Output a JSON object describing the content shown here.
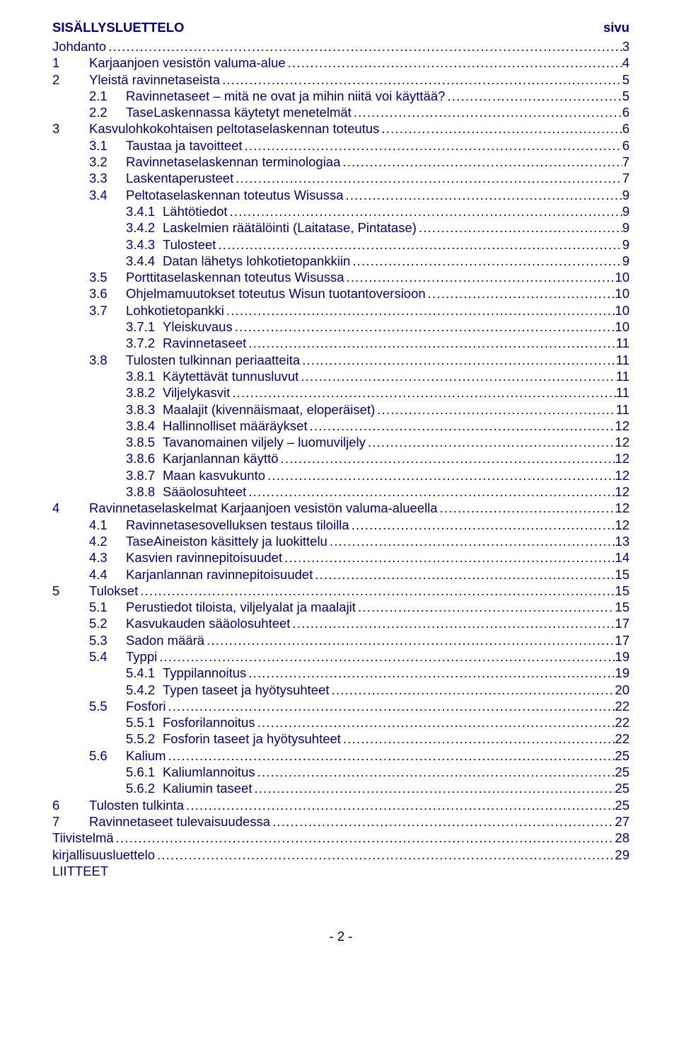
{
  "header": {
    "left": "SISÄLLYSLUETTELO",
    "right": "sivu"
  },
  "toc": [
    {
      "indent": "noindent",
      "num": "",
      "title": "Johdanto",
      "page": "3"
    },
    {
      "indent": "ind0",
      "num": "1",
      "title": "Karjaanjoen vesistön valuma-alue",
      "page": "4"
    },
    {
      "indent": "ind0",
      "num": "2",
      "title": "Yleistä ravinnetaseista",
      "page": "5"
    },
    {
      "indent": "ind1",
      "num": "2.1",
      "title": "Ravinnetaseet – mitä ne ovat ja mihin niitä voi käyttää?",
      "page": "5"
    },
    {
      "indent": "ind1",
      "num": "2.2",
      "title": "TaseLaskennassa käytetyt menetelmät",
      "page": "6"
    },
    {
      "indent": "ind0",
      "num": "3",
      "title": "Kasvulohkokohtaisen peltotaselaskennan toteutus",
      "page": "6"
    },
    {
      "indent": "ind1",
      "num": "3.1",
      "title": "Taustaa ja tavoitteet",
      "page": "6"
    },
    {
      "indent": "ind1",
      "num": "3.2",
      "title": "Ravinnetaselaskennan terminologiaa",
      "page": "7"
    },
    {
      "indent": "ind1",
      "num": "3.3",
      "title": "Laskentaperusteet",
      "page": "7"
    },
    {
      "indent": "ind1",
      "num": "3.4",
      "title": "Peltotaselaskennan toteutus Wisussa",
      "page": "9"
    },
    {
      "indent": "ind2",
      "num": "3.4.1",
      "title": "Lähtötiedot",
      "page": "9"
    },
    {
      "indent": "ind2",
      "num": "3.4.2",
      "title": "Laskelmien räätälöinti (Laitatase, Pintatase)",
      "page": "9"
    },
    {
      "indent": "ind2",
      "num": "3.4.3",
      "title": "Tulosteet",
      "page": "9"
    },
    {
      "indent": "ind2",
      "num": "3.4.4",
      "title": "Datan lähetys lohkotietopankkiin",
      "page": "9"
    },
    {
      "indent": "ind1",
      "num": "3.5",
      "title": "Porttitaselaskennan toteutus Wisussa",
      "page": "10"
    },
    {
      "indent": "ind1",
      "num": "3.6",
      "title": "Ohjelmamuutokset toteutus Wisun tuotantoversioon",
      "page": "10"
    },
    {
      "indent": "ind1",
      "num": "3.7",
      "title": "Lohkotietopankki",
      "page": "10"
    },
    {
      "indent": "ind2",
      "num": "3.7.1",
      "title": "Yleiskuvaus",
      "page": "10"
    },
    {
      "indent": "ind2",
      "num": "3.7.2",
      "title": "Ravinnetaseet",
      "page": "11"
    },
    {
      "indent": "ind1",
      "num": "3.8",
      "title": "Tulosten tulkinnan periaatteita",
      "page": "11"
    },
    {
      "indent": "ind2",
      "num": "3.8.1",
      "title": "Käytettävät tunnusluvut",
      "page": "11"
    },
    {
      "indent": "ind2",
      "num": "3.8.2",
      "title": "Viljelykasvit",
      "page": "11"
    },
    {
      "indent": "ind2",
      "num": "3.8.3",
      "title": "Maalajit (kivennäismaat, eloperäiset)",
      "page": "11"
    },
    {
      "indent": "ind2",
      "num": "3.8.4",
      "title": "Hallinnolliset määräykset",
      "page": "12"
    },
    {
      "indent": "ind2",
      "num": "3.8.5",
      "title": "Tavanomainen viljely – luomuviljely",
      "page": "12"
    },
    {
      "indent": "ind2",
      "num": "3.8.6",
      "title": "Karjanlannan käyttö",
      "page": "12"
    },
    {
      "indent": "ind2",
      "num": "3.8.7",
      "title": "Maan kasvukunto",
      "page": "12"
    },
    {
      "indent": "ind2",
      "num": "3.8.8",
      "title": "Sääolosuhteet",
      "page": "12"
    },
    {
      "indent": "ind0",
      "num": "4",
      "title": "Ravinnetaselaskelmat Karjaanjoen vesistön valuma-alueella",
      "page": "12"
    },
    {
      "indent": "ind1",
      "num": "4.1",
      "title": "Ravinnetasesovelluksen testaus tiloilla",
      "page": "12"
    },
    {
      "indent": "ind1",
      "num": "4.2",
      "title": "TaseAineiston käsittely ja luokittelu",
      "page": "13"
    },
    {
      "indent": "ind1",
      "num": "4.3",
      "title": "Kasvien ravinnepitoisuudet",
      "page": "14"
    },
    {
      "indent": "ind1",
      "num": "4.4",
      "title": "Karjanlannan ravinnepitoisuudet",
      "page": "15"
    },
    {
      "indent": "ind0",
      "num": "5",
      "title": "Tulokset",
      "page": "15"
    },
    {
      "indent": "ind1",
      "num": "5.1",
      "title": "Perustiedot tiloista, viljelyalat ja maalajit",
      "page": "15"
    },
    {
      "indent": "ind1",
      "num": "5.2",
      "title": "Kasvukauden sääolosuhteet",
      "page": "17"
    },
    {
      "indent": "ind1",
      "num": "5.3",
      "title": "Sadon määrä",
      "page": "17"
    },
    {
      "indent": "ind1",
      "num": "5.4",
      "title": "Typpi",
      "page": "19"
    },
    {
      "indent": "ind2",
      "num": "5.4.1",
      "title": "Typpilannoitus",
      "page": "19"
    },
    {
      "indent": "ind2",
      "num": "5.4.2",
      "title": "Typen taseet ja hyötysuhteet",
      "page": "20"
    },
    {
      "indent": "ind1",
      "num": "5.5",
      "title": "Fosfori",
      "page": "22"
    },
    {
      "indent": "ind2",
      "num": "5.5.1",
      "title": "Fosforilannoitus",
      "page": "22"
    },
    {
      "indent": "ind2",
      "num": "5.5.2",
      "title": "Fosforin taseet ja hyötysuhteet",
      "page": "22"
    },
    {
      "indent": "ind1",
      "num": "5.6",
      "title": "Kalium",
      "page": "25"
    },
    {
      "indent": "ind2",
      "num": "5.6.1",
      "title": "Kaliumlannoitus",
      "page": "25"
    },
    {
      "indent": "ind2",
      "num": "5.6.2",
      "title": "Kaliumin taseet",
      "page": "25"
    },
    {
      "indent": "ind0",
      "num": "6",
      "title": "Tulosten tulkinta",
      "page": "25"
    },
    {
      "indent": "ind0",
      "num": "7",
      "title": "Ravinnetaseet tulevaisuudessa",
      "page": "27"
    },
    {
      "indent": "noindent",
      "num": "",
      "title": "Tiivistelmä",
      "page": "28"
    },
    {
      "indent": "noindent",
      "num": "",
      "title": "kirjallisuusluettelo",
      "page": "29"
    },
    {
      "indent": "noindent",
      "num": "",
      "title": "LIITTEET",
      "page": ""
    }
  ],
  "footer": "- 2 -",
  "colors": {
    "link": "#000080",
    "text": "#000000",
    "bg": "#ffffff"
  }
}
